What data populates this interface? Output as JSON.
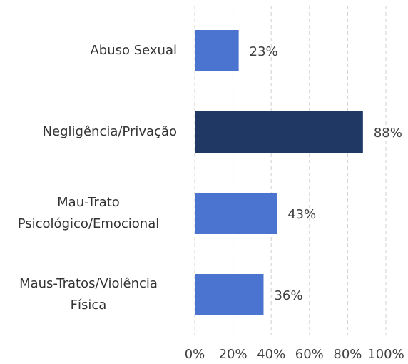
{
  "chart_data": {
    "type": "barh",
    "categories": [
      "Abuso Sexual",
      "Negligência/Privação",
      "Mau-Trato Psicológico/Emocional",
      "Maus-Tratos/Violência Física"
    ],
    "values": [
      23,
      88,
      43,
      36
    ],
    "value_labels": [
      "23%",
      "88%",
      "43%",
      "36%"
    ],
    "colors": [
      "#4a74d0",
      "#1f3864",
      "#4a74d0",
      "#4a74d0"
    ],
    "xlim": [
      0,
      100
    ],
    "xticks": [
      {
        "value": 0,
        "label": "0%"
      },
      {
        "value": 20,
        "label": "20%"
      },
      {
        "value": 40,
        "label": "40%"
      },
      {
        "value": 60,
        "label": "60%"
      },
      {
        "value": 80,
        "label": "80%"
      },
      {
        "value": 100,
        "label": "100%"
      }
    ],
    "grid": true
  }
}
